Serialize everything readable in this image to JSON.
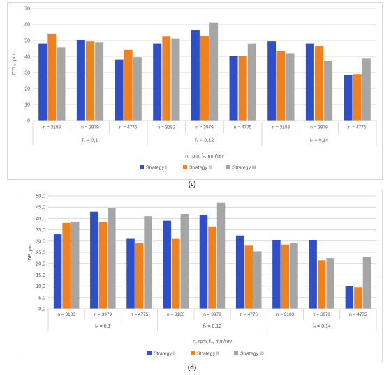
{
  "colors": {
    "strategy1": "#2f4fc9",
    "strategy2": "#f0821e",
    "strategy3": "#a6a6a6",
    "grid": "#d9d9d9",
    "axis_text": "#595959"
  },
  "chart_data": [
    {
      "type": "bar",
      "panel": "c",
      "ylabel": "CYL₀, μm",
      "xlabel": "n, rpm; fₙ, mm/rev",
      "ylim": [
        0,
        70
      ],
      "yticks": [
        0,
        10,
        20,
        30,
        40,
        50,
        60,
        70
      ],
      "ytick_labels": [
        "0",
        "10",
        "20",
        "30",
        "40",
        "50",
        "60",
        "70"
      ],
      "categories": [
        "n = 3183",
        "n = 3979",
        "n = 4775",
        "n = 3183",
        "n = 3979",
        "n = 4775",
        "n = 3183",
        "n = 3979",
        "n = 4775"
      ],
      "groups": [
        {
          "label": "fₙ = 0,1",
          "span": 3
        },
        {
          "label": "fₙ = 0,12",
          "span": 3
        },
        {
          "label": "fₙ = 0,14",
          "span": 3
        }
      ],
      "series": [
        {
          "name": "Strategy I",
          "values": [
            48,
            50,
            38,
            48,
            56.5,
            40,
            49.5,
            48,
            28.5
          ]
        },
        {
          "name": "Strategy II",
          "values": [
            54,
            49.5,
            44,
            52.5,
            53,
            40,
            43.5,
            46.5,
            29
          ]
        },
        {
          "name": "Strategy III",
          "values": [
            45.5,
            49,
            39.5,
            51,
            61,
            48,
            42,
            37,
            39
          ]
        }
      ],
      "grid": true,
      "legend": "bottom",
      "caption": "(c)"
    },
    {
      "type": "bar",
      "panel": "d",
      "ylabel": "DE, μm",
      "xlabel": "n, rpm; fₙ, mm/rev",
      "ylim": [
        0,
        50
      ],
      "yticks": [
        0,
        5,
        10,
        15,
        20,
        25,
        30,
        35,
        40,
        45,
        50
      ],
      "ytick_labels": [
        "0,0",
        "5,0",
        "10,0",
        "15,0",
        "20,0",
        "25,0",
        "30,0",
        "35,0",
        "40,0",
        "45,0",
        "50,0"
      ],
      "categories": [
        "n = 3183",
        "n = 3979",
        "n = 4775",
        "n = 3183",
        "n = 3979",
        "n = 4775",
        "n = 3183",
        "n = 3979",
        "n = 4775"
      ],
      "groups": [
        {
          "label": "fₙ = 0,1",
          "span": 3
        },
        {
          "label": "fₙ = 0,12",
          "span": 3
        },
        {
          "label": "fₙ = 0,14",
          "span": 3
        }
      ],
      "series": [
        {
          "name": "Strategy I",
          "values": [
            33,
            43,
            31,
            39,
            41.5,
            32.5,
            30.5,
            30.5,
            10
          ]
        },
        {
          "name": "Strategy II",
          "values": [
            38,
            38.5,
            29,
            31,
            36.5,
            28,
            28.5,
            21.5,
            9.5
          ]
        },
        {
          "name": "Strategy III",
          "values": [
            38.5,
            44.5,
            41,
            42,
            47,
            25.5,
            29,
            22.5,
            23
          ]
        }
      ],
      "grid": true,
      "legend": "bottom",
      "caption": "(d)"
    }
  ]
}
